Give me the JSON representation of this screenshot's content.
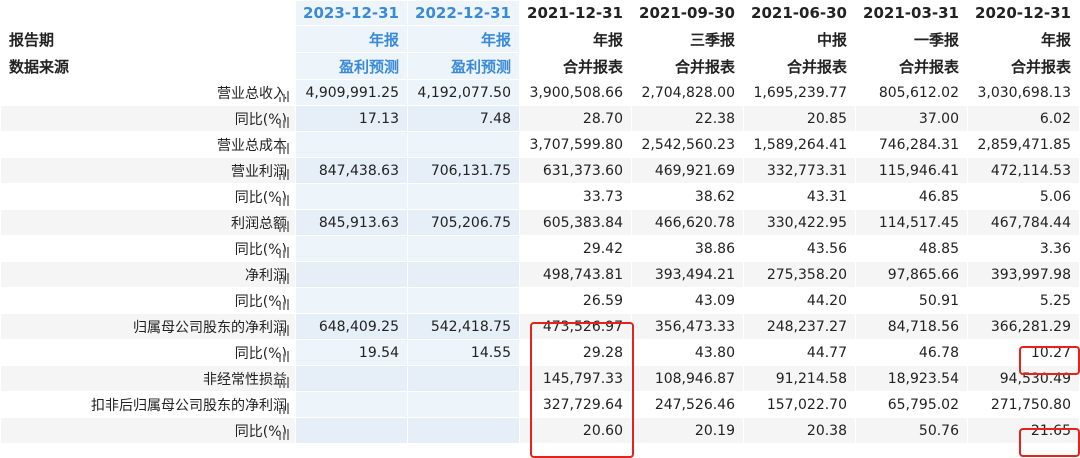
{
  "header": {
    "period_label": "报告期",
    "type_label": "",
    "source_label": "数据来源",
    "columns": [
      {
        "date": "2023-12-31",
        "type": "年报",
        "source": "盈利预测"
      },
      {
        "date": "2022-12-31",
        "type": "年报",
        "source": "盈利预测"
      },
      {
        "date": "2021-12-31",
        "type": "年报",
        "source": "合并报表"
      },
      {
        "date": "2021-09-30",
        "type": "三季报",
        "source": "合并报表"
      },
      {
        "date": "2021-06-30",
        "type": "中报",
        "source": "合并报表"
      },
      {
        "date": "2021-03-31",
        "type": "一季报",
        "source": "合并报表"
      },
      {
        "date": "2020-12-31",
        "type": "年报",
        "source": "合并报表"
      }
    ]
  },
  "rows": [
    {
      "label": "营业总收入",
      "values": [
        "4,909,991.25",
        "4,192,077.50",
        "3,900,508.66",
        "2,704,828.00",
        "1,695,239.77",
        "805,612.02",
        "3,030,698.13"
      ]
    },
    {
      "label": "同比(%)",
      "values": [
        "17.13",
        "7.48",
        "28.70",
        "22.38",
        "20.85",
        "37.00",
        "6.02"
      ]
    },
    {
      "label": "营业总成本",
      "values": [
        "",
        "",
        "3,707,599.80",
        "2,542,560.23",
        "1,589,264.41",
        "746,284.31",
        "2,859,471.85"
      ]
    },
    {
      "label": "营业利润",
      "values": [
        "847,438.63",
        "706,131.75",
        "631,373.60",
        "469,921.69",
        "332,773.31",
        "115,946.41",
        "472,114.53"
      ]
    },
    {
      "label": "同比(%)",
      "values": [
        "",
        "",
        "33.73",
        "38.62",
        "43.31",
        "46.85",
        "5.06"
      ]
    },
    {
      "label": "利润总额",
      "values": [
        "845,913.63",
        "705,206.75",
        "605,383.84",
        "466,620.78",
        "330,422.95",
        "114,517.45",
        "467,784.44"
      ]
    },
    {
      "label": "同比(%)",
      "values": [
        "",
        "",
        "29.42",
        "38.86",
        "43.56",
        "48.85",
        "3.36"
      ]
    },
    {
      "label": "净利润",
      "values": [
        "",
        "",
        "498,743.81",
        "393,494.21",
        "275,358.20",
        "97,865.66",
        "393,997.98"
      ]
    },
    {
      "label": "同比(%)",
      "values": [
        "",
        "",
        "26.59",
        "43.09",
        "44.20",
        "50.91",
        "5.25"
      ]
    },
    {
      "label": "归属母公司股东的净利润",
      "values": [
        "648,409.25",
        "542,418.75",
        "473,526.97",
        "356,473.33",
        "248,237.27",
        "84,718.56",
        "366,281.29"
      ]
    },
    {
      "label": "同比(%)",
      "values": [
        "19.54",
        "14.55",
        "29.28",
        "43.80",
        "44.77",
        "46.78",
        "10.27"
      ]
    },
    {
      "label": "非经常性损益",
      "values": [
        "",
        "",
        "145,797.33",
        "108,946.87",
        "91,214.58",
        "18,923.54",
        "94,530.49"
      ]
    },
    {
      "label": "扣非后归属母公司股东的净利润",
      "values": [
        "",
        "",
        "327,729.64",
        "247,526.46",
        "157,022.70",
        "65,795.02",
        "271,750.80"
      ]
    },
    {
      "label": "同比(%)",
      "values": [
        "",
        "",
        "20.60",
        "20.19",
        "20.38",
        "50.76",
        "21.65"
      ]
    }
  ],
  "colors": {
    "forecast_text": "#3b8ad8",
    "forecast_bg": "#edf5fb",
    "highlight_box": "#e5221b"
  },
  "icons": {
    "row_chart": "bar-chart-icon"
  }
}
